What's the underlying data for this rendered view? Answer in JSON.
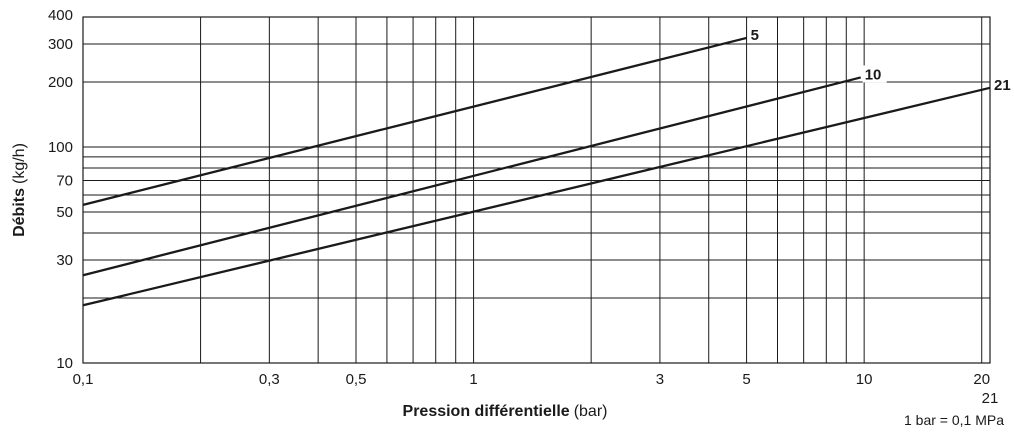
{
  "chart_data": {
    "type": "line",
    "xlabel_bold": "Pression différentielle",
    "xlabel_unit": "(bar)",
    "ylabel_bold": "Débits",
    "ylabel_unit": "(kg/h)",
    "xscale": "log",
    "yscale": "log",
    "xlim": [
      0.1,
      21
    ],
    "ylim": [
      10,
      400
    ],
    "grid": true,
    "x_gridlines": [
      0.2,
      0.3,
      0.4,
      0.5,
      0.6,
      0.7,
      0.8,
      0.9,
      1,
      2,
      3,
      4,
      5,
      6,
      7,
      8,
      9,
      10,
      20
    ],
    "y_gridlines": [
      20,
      30,
      40,
      50,
      60,
      70,
      80,
      90,
      100,
      200,
      300
    ],
    "x_ticks": [
      {
        "value": 0.1,
        "label": "0,1"
      },
      {
        "value": 0.3,
        "label": "0,3"
      },
      {
        "value": 0.5,
        "label": "0,5"
      },
      {
        "value": 1,
        "label": "1"
      },
      {
        "value": 3,
        "label": "3"
      },
      {
        "value": 5,
        "label": "5"
      },
      {
        "value": 10,
        "label": "10"
      },
      {
        "value": 20,
        "label": "20"
      }
    ],
    "x_end_label": {
      "value": 21,
      "label": "21"
    },
    "y_ticks": [
      {
        "value": 10,
        "label": "10"
      },
      {
        "value": 30,
        "label": "30"
      },
      {
        "value": 50,
        "label": "50"
      },
      {
        "value": 70,
        "label": "70"
      },
      {
        "value": 100,
        "label": "100"
      },
      {
        "value": 200,
        "label": "200"
      },
      {
        "value": 300,
        "label": "300"
      },
      {
        "value": 400,
        "label": "400"
      }
    ],
    "series": [
      {
        "name": "5",
        "x": [
          0.1,
          5
        ],
        "y": [
          54,
          320
        ]
      },
      {
        "name": "10",
        "x": [
          0.1,
          9.8
        ],
        "y": [
          25.5,
          210
        ]
      },
      {
        "name": "21",
        "x": [
          0.1,
          21
        ],
        "y": [
          18.5,
          188
        ]
      }
    ],
    "note": "1 bar = 0,1 MPa"
  }
}
